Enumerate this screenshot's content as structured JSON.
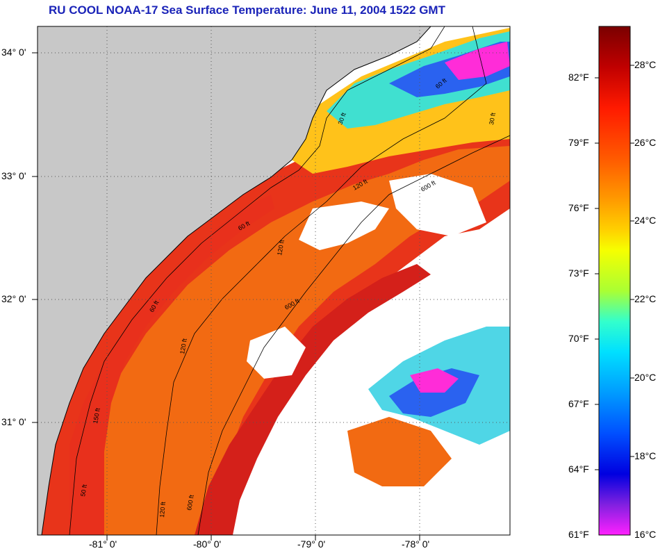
{
  "title": "RU COOL  NOAA-17  Sea Surface Temperature:  June 11, 2004 1522 GMT",
  "map": {
    "lat_labels": [
      "34° 0'",
      "33° 0'",
      "32° 0'",
      "31° 0'"
    ],
    "lon_labels": [
      "-81° 0'",
      "-80° 0'",
      "-79° 0'",
      "-78° 0'"
    ],
    "contour_labels": [
      "60 ft",
      "30 ft",
      "120 ft",
      "600 ft",
      "60 ft",
      "120 ft",
      "600 ft",
      "150 ft",
      "120 ft",
      "600 ft",
      "50 ft",
      "120 ft",
      "60 ft",
      "30 ft"
    ],
    "land_color": "#c8c8c8",
    "cloud_color": "#ffffff"
  },
  "colorbar": {
    "fahrenheit_labels": [
      "82°F",
      "79°F",
      "76°F",
      "73°F",
      "70°F",
      "67°F",
      "64°F",
      "61°F"
    ],
    "celsius_labels": [
      "28°C",
      "26°C",
      "24°C",
      "22°C",
      "20°C",
      "18°C",
      "16°C"
    ],
    "colors_top_to_bottom": [
      "#7a0000",
      "#c00000",
      "#ff1a00",
      "#ff5a00",
      "#ff9a00",
      "#ffd000",
      "#f6ff00",
      "#aaff33",
      "#33ffcc",
      "#00e0ff",
      "#009cff",
      "#0050ff",
      "#0000e0",
      "#8020e0",
      "#ff20ff"
    ]
  }
}
